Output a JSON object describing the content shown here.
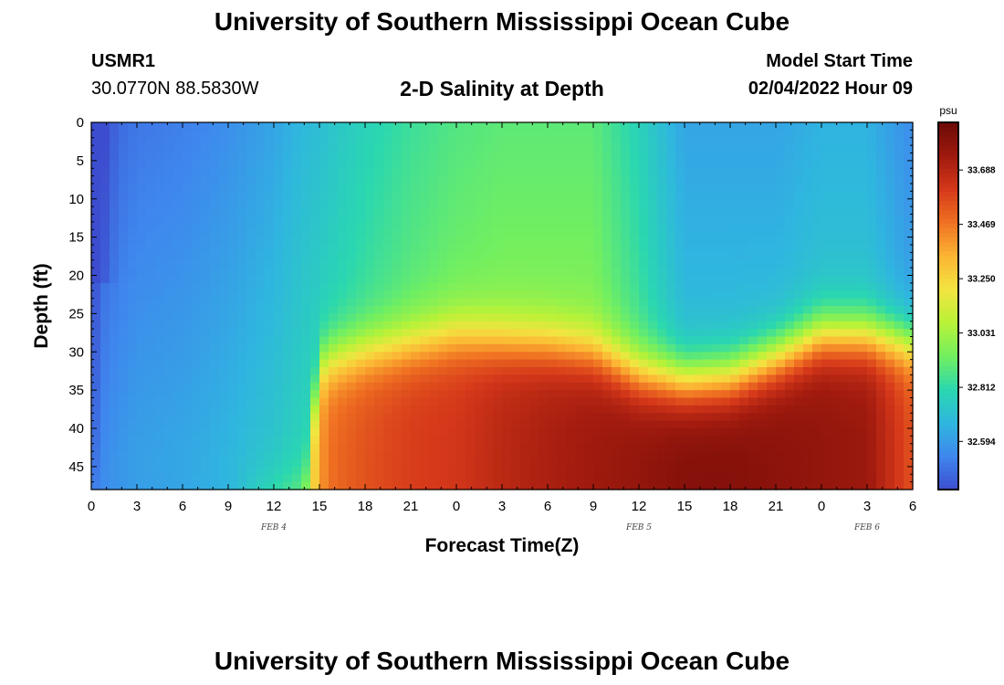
{
  "header": {
    "title": "University of Southern Mississippi Ocean Cube",
    "station": "USMR1",
    "coords": "30.0770N  88.5830W",
    "plot_title": "2-D Salinity at Depth",
    "model_label": "Model Start Time",
    "model_time": "02/04/2022 Hour 09"
  },
  "footer": {
    "title": "University of Southern Mississippi Ocean Cube"
  },
  "chart_data": {
    "type": "heatmap",
    "title": "2-D Salinity at Depth",
    "xlabel": "Forecast Time(Z)",
    "ylabel": "Depth (ft)",
    "x_ticks": [
      "0",
      "3",
      "6",
      "9",
      "12",
      "15",
      "18",
      "21",
      "0",
      "3",
      "6",
      "9",
      "12",
      "15",
      "18",
      "21",
      "0",
      "3",
      "6"
    ],
    "date_labels": [
      {
        "label": "FEB 4",
        "tick_index": 4
      },
      {
        "label": "FEB 5",
        "tick_index": 12
      },
      {
        "label": "FEB 6",
        "tick_index": 17
      }
    ],
    "y_ticks": [
      0,
      5,
      10,
      15,
      20,
      25,
      30,
      35,
      40,
      45
    ],
    "ylim": [
      0,
      48
    ],
    "xlim_hours": [
      0,
      54
    ],
    "colorbar": {
      "unit": "psu",
      "ticks": [
        "33.688",
        "33.469",
        "33.250",
        "33.031",
        "32.812",
        "32.594"
      ],
      "min": 32.4,
      "max": 33.88,
      "colors": [
        "#3d4dcf",
        "#3f86ee",
        "#2fb6df",
        "#2ad7b0",
        "#72ef60",
        "#b8f238",
        "#f2e540",
        "#fcb534",
        "#f07222",
        "#d5381a",
        "#a01a0e",
        "#6c0a08"
      ]
    },
    "grid": false,
    "approx_salinity_samples": {
      "time_hours": [
        0,
        1,
        3,
        6,
        9,
        12,
        14,
        15,
        16,
        18,
        21,
        24,
        27,
        30,
        33,
        36,
        39,
        42,
        45,
        48,
        51,
        54
      ],
      "depth_ft": [
        0,
        5,
        10,
        15,
        20,
        25,
        28,
        30,
        33,
        36,
        40,
        45,
        48
      ],
      "surface_layer_psu": [
        32.35,
        32.45,
        32.5,
        32.52,
        32.56,
        32.62,
        32.68,
        32.7,
        32.73,
        32.78,
        32.84,
        32.88,
        32.9,
        32.9,
        32.9,
        32.78,
        32.62,
        32.62,
        32.62,
        32.66,
        32.66,
        32.55
      ],
      "bottom_layer_psu": [
        32.55,
        32.55,
        32.58,
        32.6,
        32.65,
        32.88,
        33.0,
        33.4,
        33.5,
        33.55,
        33.6,
        33.62,
        33.68,
        33.72,
        33.75,
        33.78,
        33.82,
        33.82,
        33.8,
        33.78,
        33.76,
        33.55
      ],
      "interface_depth_ft": [
        48,
        48,
        48,
        48,
        48,
        48,
        48,
        32,
        31,
        30,
        29,
        28,
        28.5,
        29,
        30,
        33,
        34,
        33.5,
        31,
        28,
        28,
        29
      ]
    }
  }
}
